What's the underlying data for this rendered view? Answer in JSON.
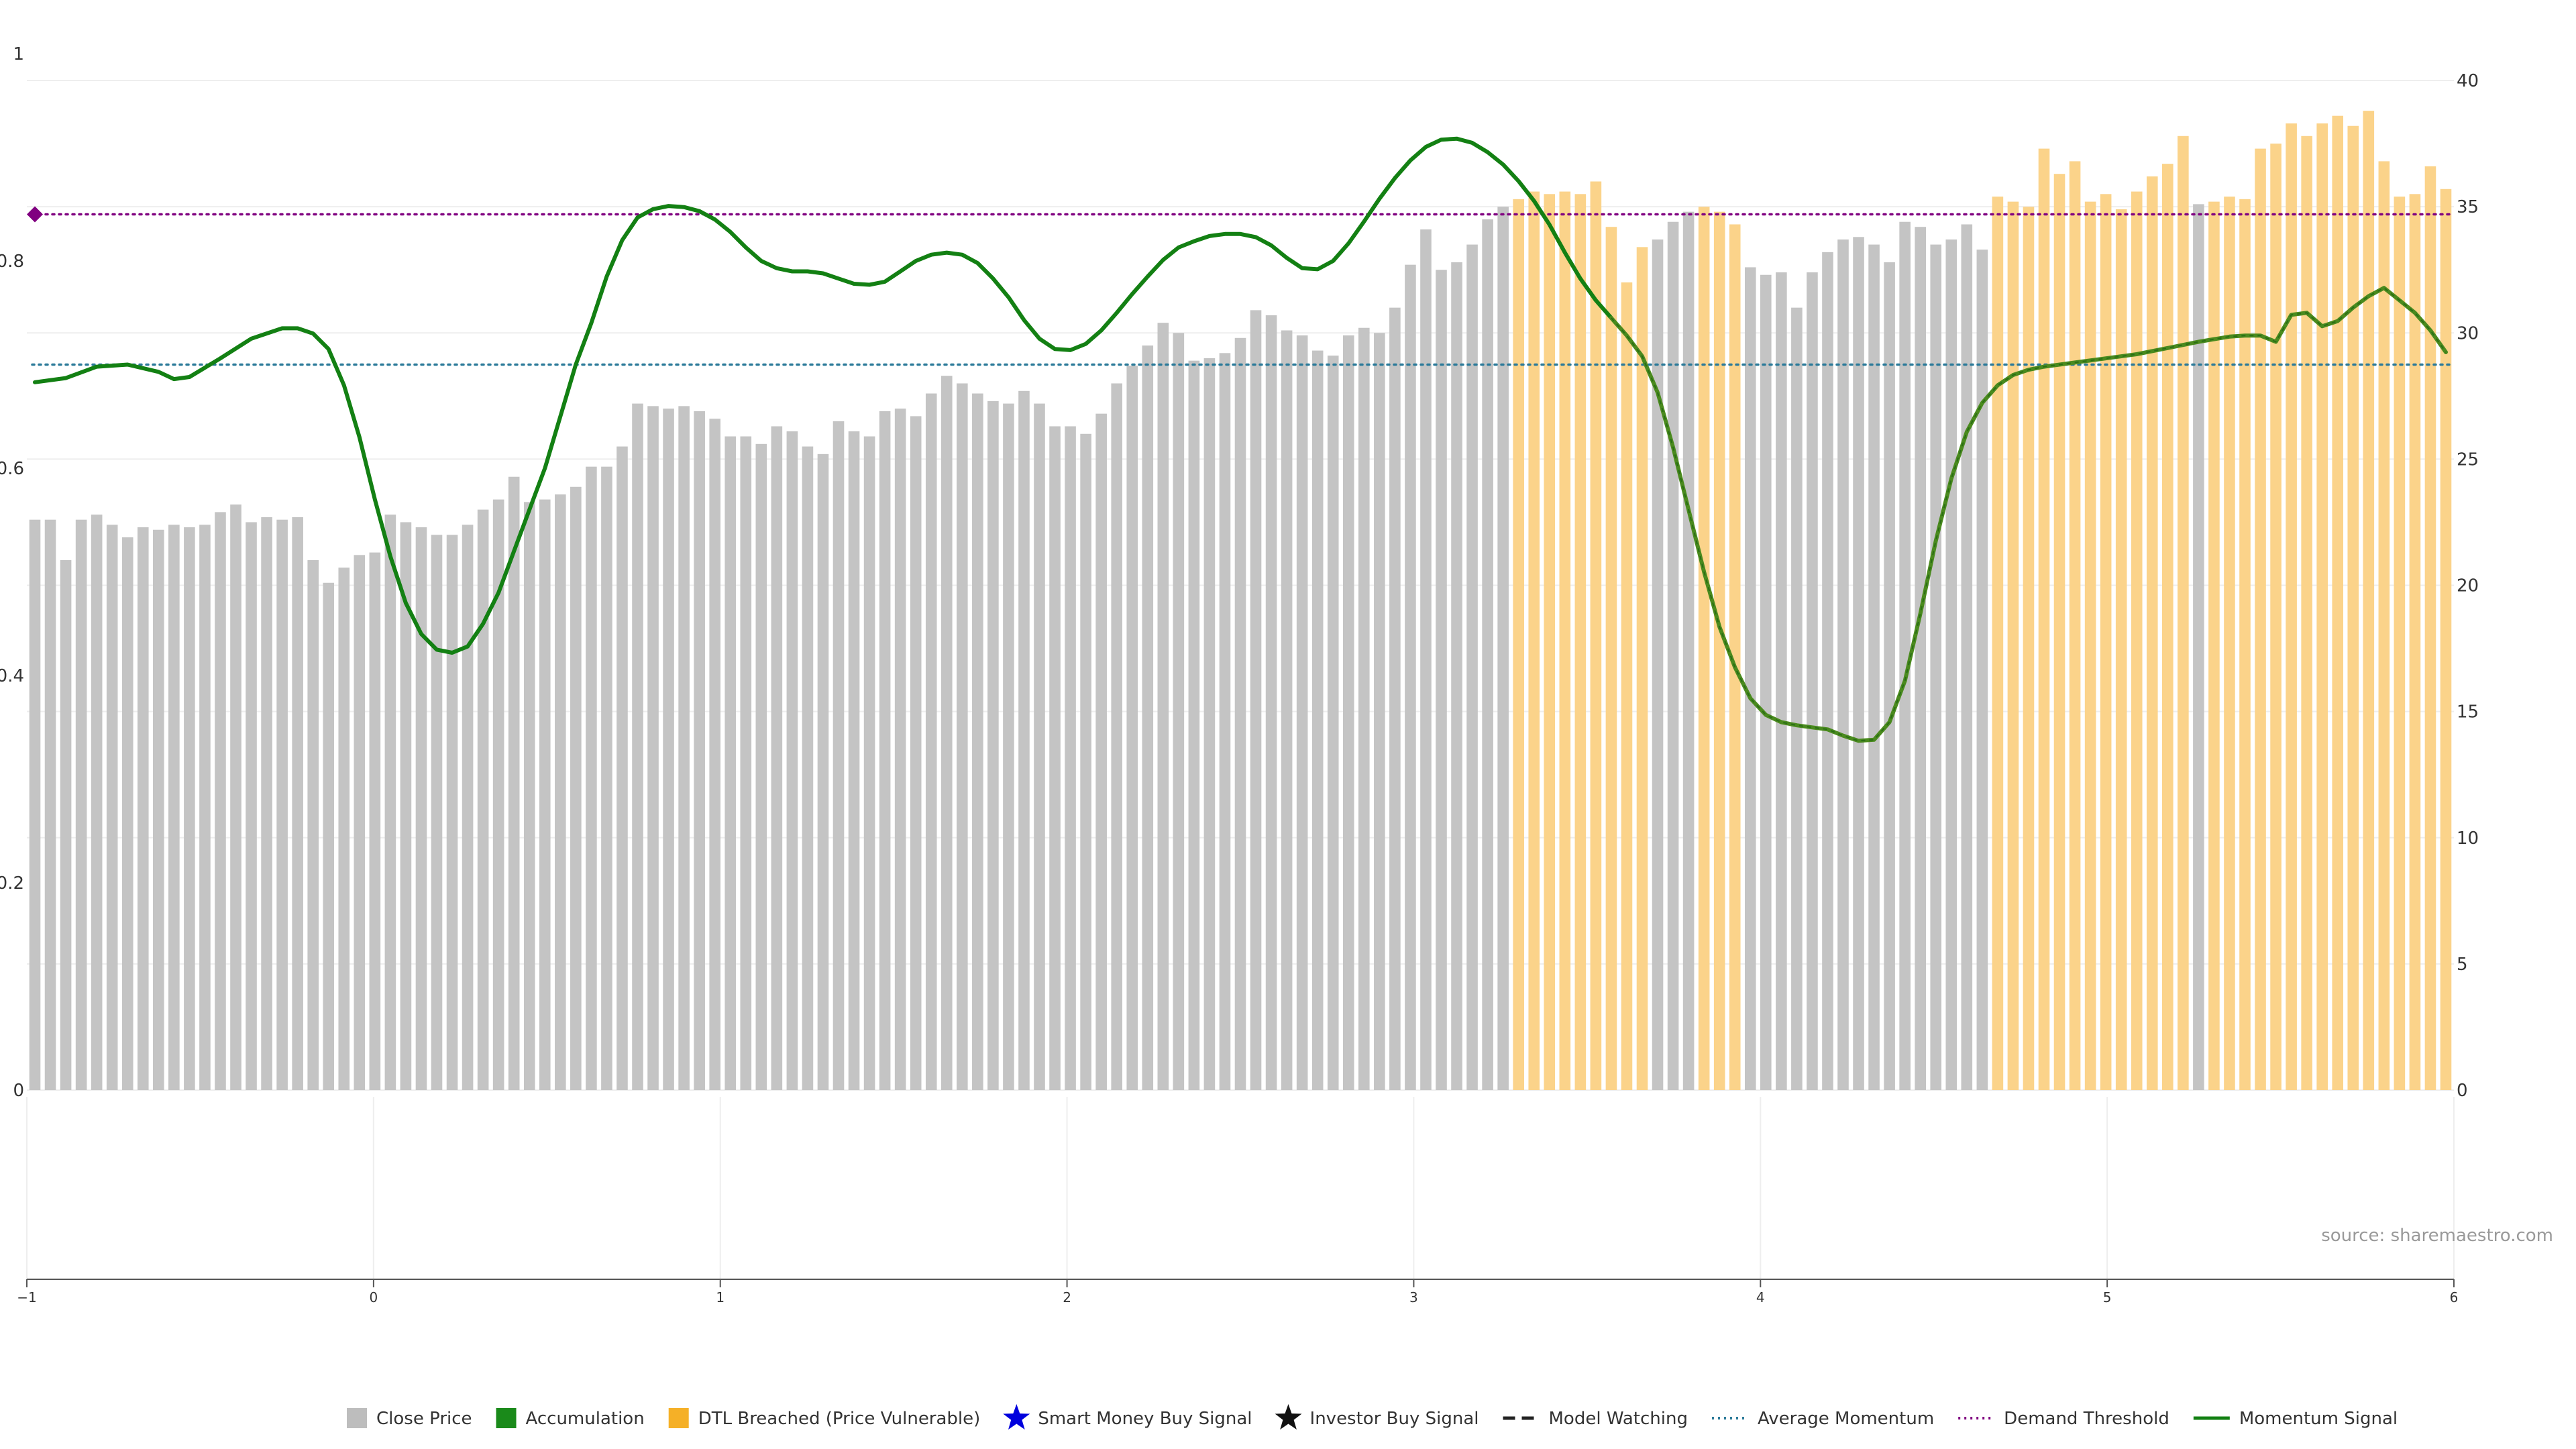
{
  "source": "source: sharemaestro.com",
  "legend": [
    {
      "label": "Close Price",
      "symbol": "square",
      "color": "#bdbdbd"
    },
    {
      "label": "Accumulation",
      "symbol": "square",
      "color": "#1a8a1a"
    },
    {
      "label": "DTL Breached (Price Vulnerable)",
      "symbol": "square",
      "color": "#f5b027"
    },
    {
      "label": "Smart Money Buy Signal",
      "symbol": "star",
      "color": "#0000dd"
    },
    {
      "label": "Investor Buy Signal",
      "symbol": "star",
      "color": "#111111"
    },
    {
      "label": "Model Watching",
      "symbol": "dash",
      "color": "#222222"
    },
    {
      "label": "Average Momentum",
      "symbol": "dotted",
      "color": "#2b7a99"
    },
    {
      "label": "Demand Threshold",
      "symbol": "dotted",
      "color": "#800080"
    },
    {
      "label": "Momentum Signal",
      "symbol": "solid",
      "color": "#138013"
    }
  ],
  "colors": {
    "close_price": "#c4c4c4",
    "dtl_breached": "#fbd38a",
    "momentum": "#138013",
    "momentum_late": "#4a8a1e",
    "average_momentum": "#2b7a99",
    "demand_threshold": "#800080"
  },
  "chart_data": {
    "type": "bar",
    "left_axis": {
      "range": [
        0,
        1
      ],
      "ticks": [
        "0",
        "0.2",
        "0.4",
        "0.6",
        "0.8",
        "1"
      ]
    },
    "right_axis": {
      "range": [
        0,
        40
      ],
      "ticks": [
        "0",
        "5",
        "10",
        "15",
        "20",
        "25",
        "30",
        "35",
        "40"
      ]
    },
    "x_axis": {
      "range": [
        -1,
        6
      ],
      "ticks": [
        "−1",
        "0",
        "1",
        "2",
        "3",
        "4",
        "5",
        "6"
      ]
    },
    "grid": true,
    "bar_count": 157,
    "close_price": [
      22.6,
      22.6,
      21.0,
      22.6,
      22.8,
      22.4,
      21.9,
      22.3,
      22.2,
      22.4,
      22.3,
      22.4,
      22.9,
      23.2,
      22.5,
      22.7,
      22.6,
      22.7,
      21.0,
      20.1,
      20.7,
      21.2,
      21.3,
      22.8,
      22.5,
      22.3,
      22.0,
      22.0,
      22.4,
      23.0,
      23.4,
      24.3,
      23.3,
      23.4,
      23.6,
      23.9,
      24.7,
      24.7,
      25.5,
      27.2,
      27.1,
      27.0,
      27.1,
      26.9,
      26.6,
      25.9,
      25.9,
      25.6,
      26.3,
      26.1,
      25.5,
      25.2,
      26.5,
      26.1,
      25.9,
      26.9,
      27.0,
      26.7,
      27.6,
      28.3,
      28.0,
      27.6,
      27.3,
      27.2,
      27.7,
      27.2,
      26.3,
      26.3,
      26.0,
      26.8,
      28.0,
      28.7,
      29.5,
      30.4,
      30.0,
      28.9,
      29.0,
      29.2,
      29.8,
      30.9,
      30.7,
      30.1,
      29.9,
      29.3,
      29.1,
      29.9,
      30.2,
      30.0,
      31.0,
      32.7,
      34.1,
      32.5,
      32.8,
      33.5,
      34.5,
      35.0,
      35.3,
      35.6,
      35.5,
      35.6,
      35.5,
      36.0,
      34.2,
      32.0,
      33.4,
      33.7,
      34.4,
      34.8,
      35.0,
      34.8,
      34.3,
      32.6,
      32.3,
      32.4,
      31.0,
      32.4,
      33.2,
      33.7,
      33.8,
      33.5,
      32.8,
      34.4,
      34.2,
      33.5,
      33.7,
      34.3,
      33.3,
      35.4,
      35.2,
      35.0,
      37.3,
      36.3,
      36.8,
      35.2,
      35.5,
      34.9,
      35.6,
      36.2,
      36.7,
      37.8,
      35.1,
      35.2,
      35.4,
      35.3,
      37.3,
      37.5,
      38.3,
      37.8,
      38.3,
      38.6,
      38.2,
      38.8,
      36.8,
      35.4,
      35.5,
      36.6,
      35.7
    ],
    "dtl_breached": [
      96,
      97,
      98,
      99,
      100,
      101,
      102,
      103,
      104,
      108,
      109,
      110,
      127,
      128,
      129,
      130,
      131,
      132,
      133,
      134,
      135,
      136,
      137,
      138,
      139,
      141,
      142,
      143,
      144,
      145,
      146,
      147,
      148,
      149,
      150,
      151,
      152,
      153,
      154,
      155,
      156
    ],
    "momentum_signal": [
      [
        0,
        0.683
      ],
      [
        2,
        0.687
      ],
      [
        4,
        0.698
      ],
      [
        6,
        0.7
      ],
      [
        8,
        0.693
      ],
      [
        9,
        0.686
      ],
      [
        10,
        0.688
      ],
      [
        12,
        0.706
      ],
      [
        14,
        0.725
      ],
      [
        16,
        0.735
      ],
      [
        17,
        0.735
      ],
      [
        18,
        0.73
      ],
      [
        19,
        0.715
      ],
      [
        20,
        0.68
      ],
      [
        21,
        0.63
      ],
      [
        22,
        0.57
      ],
      [
        23,
        0.515
      ],
      [
        24,
        0.47
      ],
      [
        25,
        0.44
      ],
      [
        26,
        0.425
      ],
      [
        27,
        0.422
      ],
      [
        28,
        0.428
      ],
      [
        29,
        0.45
      ],
      [
        30,
        0.48
      ],
      [
        31,
        0.52
      ],
      [
        32,
        0.56
      ],
      [
        33,
        0.6
      ],
      [
        34,
        0.65
      ],
      [
        35,
        0.7
      ],
      [
        36,
        0.74
      ],
      [
        37,
        0.785
      ],
      [
        38,
        0.82
      ],
      [
        39,
        0.842
      ],
      [
        40,
        0.85
      ],
      [
        41,
        0.853
      ],
      [
        42,
        0.852
      ],
      [
        43,
        0.848
      ],
      [
        44,
        0.84
      ],
      [
        45,
        0.828
      ],
      [
        46,
        0.813
      ],
      [
        47,
        0.8
      ],
      [
        48,
        0.793
      ],
      [
        49,
        0.79
      ],
      [
        50,
        0.79
      ],
      [
        51,
        0.788
      ],
      [
        52,
        0.783
      ],
      [
        53,
        0.778
      ],
      [
        54,
        0.777
      ],
      [
        55,
        0.78
      ],
      [
        56,
        0.79
      ],
      [
        57,
        0.8
      ],
      [
        58,
        0.806
      ],
      [
        59,
        0.808
      ],
      [
        60,
        0.806
      ],
      [
        61,
        0.798
      ],
      [
        62,
        0.783
      ],
      [
        63,
        0.765
      ],
      [
        64,
        0.743
      ],
      [
        65,
        0.725
      ],
      [
        66,
        0.715
      ],
      [
        67,
        0.714
      ],
      [
        68,
        0.72
      ],
      [
        69,
        0.733
      ],
      [
        70,
        0.75
      ],
      [
        71,
        0.768
      ],
      [
        72,
        0.785
      ],
      [
        73,
        0.801
      ],
      [
        74,
        0.813
      ],
      [
        75,
        0.819
      ],
      [
        76,
        0.824
      ],
      [
        77,
        0.826
      ],
      [
        78,
        0.826
      ],
      [
        79,
        0.823
      ],
      [
        80,
        0.815
      ],
      [
        81,
        0.803
      ],
      [
        82,
        0.793
      ],
      [
        83,
        0.792
      ],
      [
        84,
        0.8
      ],
      [
        85,
        0.817
      ],
      [
        86,
        0.838
      ],
      [
        87,
        0.86
      ],
      [
        88,
        0.88
      ],
      [
        89,
        0.897
      ],
      [
        90,
        0.91
      ],
      [
        91,
        0.917
      ],
      [
        92,
        0.918
      ],
      [
        93,
        0.914
      ],
      [
        94,
        0.905
      ],
      [
        95,
        0.893
      ],
      [
        96,
        0.877
      ],
      [
        97,
        0.858
      ],
      [
        98,
        0.835
      ],
      [
        99,
        0.808
      ],
      [
        100,
        0.783
      ],
      [
        101,
        0.762
      ],
      [
        102,
        0.745
      ],
      [
        103,
        0.728
      ],
      [
        104,
        0.708
      ],
      [
        105,
        0.673
      ],
      [
        106,
        0.62
      ],
      [
        107,
        0.56
      ],
      [
        108,
        0.5
      ],
      [
        109,
        0.447
      ],
      [
        110,
        0.408
      ],
      [
        111,
        0.378
      ],
      [
        112,
        0.362
      ],
      [
        113,
        0.355
      ],
      [
        114,
        0.352
      ],
      [
        115,
        0.35
      ],
      [
        116,
        0.348
      ],
      [
        117,
        0.342
      ],
      [
        118,
        0.337
      ],
      [
        119,
        0.338
      ],
      [
        120,
        0.355
      ],
      [
        121,
        0.395
      ],
      [
        122,
        0.46
      ],
      [
        123,
        0.53
      ],
      [
        124,
        0.59
      ],
      [
        125,
        0.635
      ],
      [
        126,
        0.663
      ],
      [
        127,
        0.68
      ],
      [
        128,
        0.69
      ],
      [
        129,
        0.695
      ],
      [
        130,
        0.698
      ],
      [
        132,
        0.702
      ],
      [
        134,
        0.706
      ],
      [
        136,
        0.71
      ],
      [
        138,
        0.716
      ],
      [
        140,
        0.722
      ],
      [
        142,
        0.727
      ],
      [
        143,
        0.728
      ],
      [
        144,
        0.728
      ],
      [
        145,
        0.722
      ],
      [
        146,
        0.748
      ],
      [
        147,
        0.75
      ],
      [
        148,
        0.737
      ],
      [
        149,
        0.742
      ],
      [
        150,
        0.755
      ],
      [
        151,
        0.766
      ],
      [
        152,
        0.774
      ],
      [
        153,
        0.762
      ],
      [
        154,
        0.75
      ],
      [
        155,
        0.733
      ],
      [
        156,
        0.712
      ]
    ],
    "momentum_late_start_index": 95,
    "average_momentum": 0.7,
    "demand_threshold": 0.845
  }
}
